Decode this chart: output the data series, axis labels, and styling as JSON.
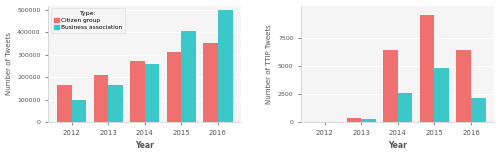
{
  "years": [
    2012,
    2013,
    2014,
    2015,
    2016
  ],
  "left_citizen": [
    165000,
    210000,
    275000,
    312000,
    352000
  ],
  "left_business": [
    100000,
    168000,
    258000,
    408000,
    500000
  ],
  "right_citizen": [
    0,
    400,
    6400,
    9600,
    6400
  ],
  "right_business": [
    0,
    300,
    2600,
    4800,
    2200
  ],
  "left_ylim": [
    0,
    520000
  ],
  "left_yticks": [
    0,
    100000,
    200000,
    300000,
    400000,
    500000
  ],
  "left_yticklabels": [
    "0",
    "100000",
    "200000",
    "300000",
    "400000",
    "500000"
  ],
  "right_ylim": [
    0,
    10400
  ],
  "right_yticks": [
    0,
    2500,
    5000,
    7500
  ],
  "right_yticklabels": [
    "0",
    "2500",
    "5000",
    "7500"
  ],
  "color_citizen": "#F07070",
  "color_business": "#3CC8C8",
  "left_ylabel": "Number of Tweets",
  "right_ylabel": "Number of TTIP Tweets",
  "xlabel": "Year",
  "legend_title": "Type:",
  "legend_citizen": "Citizen group",
  "legend_business": "Business association",
  "bg_color": "#ffffff",
  "panel_bg": "#f5f5f5",
  "grid_color": "#ffffff"
}
